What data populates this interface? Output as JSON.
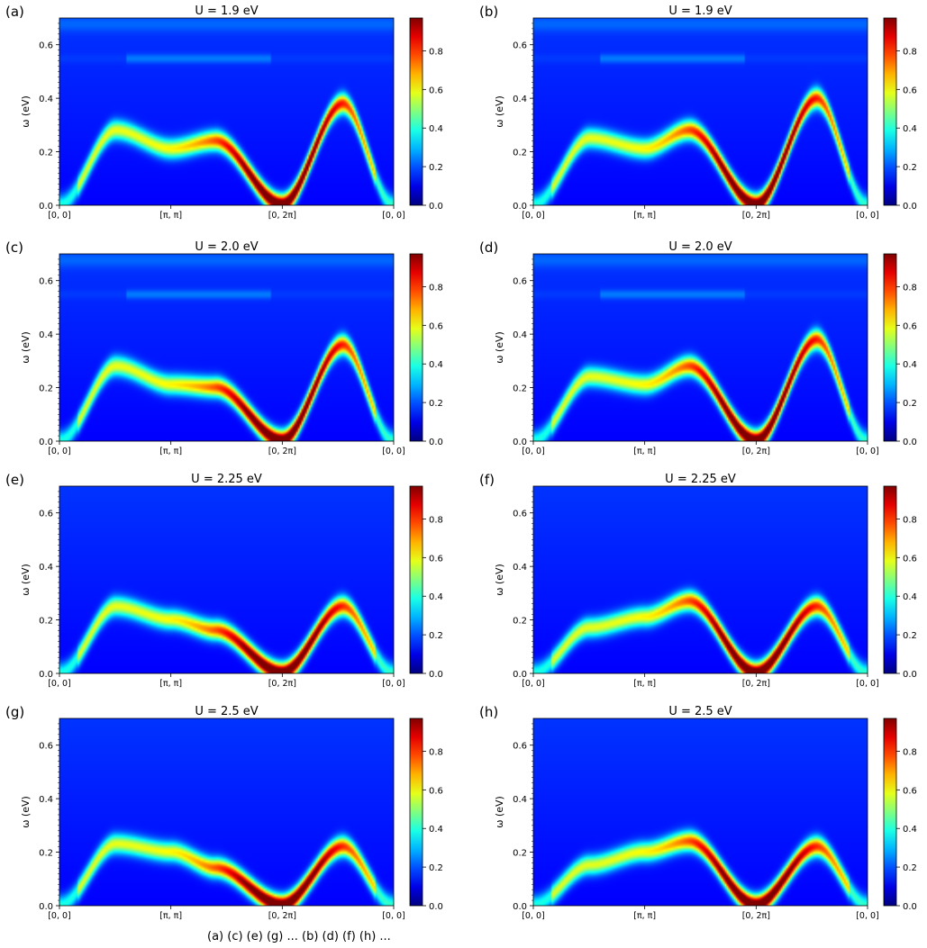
{
  "figure": {
    "colormap": "jet",
    "colorbar_ticks": [
      "0.0",
      "0.2",
      "0.4",
      "0.6",
      "0.8"
    ],
    "ylabel": "ω (eV)",
    "ytick_labels": [
      "0.0",
      "0.2",
      "0.4",
      "0.6"
    ],
    "xtick_labels": [
      "[0, 0]",
      "[π, π]",
      "[0, 2π]",
      "[0, 0]"
    ],
    "caption_fragment": "(a) (c) (e) (g) ... (b) (d) (f) (h) ..."
  },
  "chart_data": [
    {
      "panel": "(a)",
      "type": "heatmap",
      "title": "U = 1.9 eV",
      "ylim": [
        0,
        0.7
      ],
      "clim": [
        0,
        0.97
      ],
      "magnon_peak_omega": [
        0.0,
        0.28,
        0.21,
        0.24,
        0.0,
        0.38,
        0.0
      ],
      "path_points": [
        0,
        0.5,
        1.0,
        1.4,
        2.0,
        2.55,
        3.0
      ],
      "secondary_band_omega": 0.55
    },
    {
      "panel": "(b)",
      "type": "heatmap",
      "title": "U = 1.9 eV",
      "ylim": [
        0,
        0.7
      ],
      "clim": [
        0,
        0.97
      ],
      "magnon_peak_omega": [
        0.0,
        0.25,
        0.21,
        0.28,
        0.0,
        0.4,
        0.0
      ],
      "path_points": [
        0,
        0.5,
        1.0,
        1.4,
        2.0,
        2.55,
        3.0
      ],
      "secondary_band_omega": 0.55
    },
    {
      "panel": "(c)",
      "type": "heatmap",
      "title": "U = 2.0 eV",
      "ylim": [
        0,
        0.7
      ],
      "clim": [
        0,
        0.97
      ],
      "magnon_peak_omega": [
        0.0,
        0.28,
        0.21,
        0.2,
        0.0,
        0.36,
        0.0
      ],
      "path_points": [
        0,
        0.5,
        1.0,
        1.4,
        2.0,
        2.55,
        3.0
      ],
      "secondary_band_omega": 0.55
    },
    {
      "panel": "(d)",
      "type": "heatmap",
      "title": "U = 2.0 eV",
      "ylim": [
        0,
        0.7
      ],
      "clim": [
        0,
        0.97
      ],
      "magnon_peak_omega": [
        0.0,
        0.24,
        0.21,
        0.28,
        0.0,
        0.38,
        0.0
      ],
      "path_points": [
        0,
        0.5,
        1.0,
        1.4,
        2.0,
        2.55,
        3.0
      ],
      "secondary_band_omega": 0.55
    },
    {
      "panel": "(e)",
      "type": "heatmap",
      "title": "U = 2.25 eV",
      "ylim": [
        0,
        0.7
      ],
      "clim": [
        0,
        0.97
      ],
      "magnon_peak_omega": [
        0.0,
        0.25,
        0.2,
        0.16,
        0.0,
        0.25,
        0.0
      ],
      "path_points": [
        0,
        0.5,
        1.0,
        1.4,
        2.0,
        2.55,
        3.0
      ],
      "secondary_band_omega": null
    },
    {
      "panel": "(f)",
      "type": "heatmap",
      "title": "U = 2.25 eV",
      "ylim": [
        0,
        0.7
      ],
      "clim": [
        0,
        0.97
      ],
      "magnon_peak_omega": [
        0.0,
        0.17,
        0.21,
        0.27,
        0.0,
        0.25,
        0.0
      ],
      "path_points": [
        0,
        0.5,
        1.0,
        1.4,
        2.0,
        2.55,
        3.0
      ],
      "secondary_band_omega": null
    },
    {
      "panel": "(g)",
      "type": "heatmap",
      "title": "U = 2.5 eV",
      "ylim": [
        0,
        0.7
      ],
      "clim": [
        0,
        0.97
      ],
      "magnon_peak_omega": [
        0.0,
        0.23,
        0.2,
        0.14,
        0.0,
        0.22,
        0.0
      ],
      "path_points": [
        0,
        0.5,
        1.0,
        1.4,
        2.0,
        2.55,
        3.0
      ],
      "secondary_band_omega": null
    },
    {
      "panel": "(h)",
      "type": "heatmap",
      "title": "U = 2.5 eV",
      "ylim": [
        0,
        0.7
      ],
      "clim": [
        0,
        0.97
      ],
      "magnon_peak_omega": [
        0.0,
        0.15,
        0.2,
        0.24,
        0.0,
        0.22,
        0.0
      ],
      "path_points": [
        0,
        0.5,
        1.0,
        1.4,
        2.0,
        2.55,
        3.0
      ],
      "secondary_band_omega": null
    }
  ]
}
